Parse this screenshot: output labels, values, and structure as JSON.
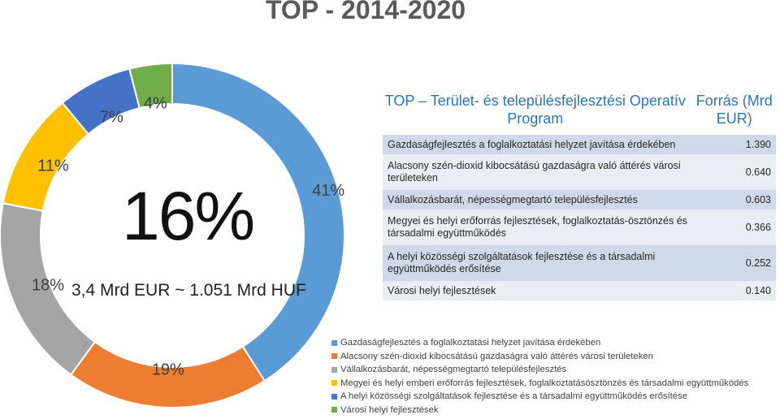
{
  "page_title": "TOP - 2014-2020",
  "center": {
    "percent": "16%",
    "total": "3,4 Mrd EUR ~ 1.051 Mrd HUF"
  },
  "table": {
    "header_program": "TOP – Terület- és településfejlesztési Operatív Program",
    "header_source": "Forrás (Mrd EUR)",
    "rows": [
      {
        "label": "Gazdaságfejlesztés a foglalkoztatási helyzet javítása érdekében",
        "value": "1.390"
      },
      {
        "label": "Alacsony szén-dioxid kibocsátású gazdaságra való áttérés városi területeken",
        "value": "0.640"
      },
      {
        "label": "Vállalkozásbarát, népességmegtartó településfejlesztés",
        "value": "0.603"
      },
      {
        "label": "Megyei és helyi erőforrás fejlesztések, foglalkoztatás-ösztönzés és társadalmi együttműködés",
        "value": "0.366"
      },
      {
        "label": "A helyi közösségi szolgáltatások fejlesztése és a társadalmi együttműködés erősítése",
        "value": "0.252"
      },
      {
        "label": "Városi helyi fejlesztések",
        "value": "0.140"
      }
    ]
  },
  "chart_data": {
    "type": "pie",
    "variant": "donut",
    "categories": [
      "Gazdaságfejlesztés a foglalkoztatási helyzet javítása érdekében",
      "Alacsony szén-dioxid kibocsátású gazdaságra való áttérés városi területeken",
      "Vállalkozásbarát, népességmegtartó településfejlesztés",
      "Megyei és helyi emberi erőforrás fejlesztések, foglalkoztatásösztönzés és társadalmi együttműködés",
      "A helyi közösségi szolgáltatások fejlesztése és a társadalmi együttműködés erősítése",
      "Városi helyi fejlesztések"
    ],
    "values": [
      41,
      19,
      18,
      11,
      7,
      4
    ],
    "labels": [
      "41%",
      "19%",
      "18%",
      "11%",
      "7%",
      "4%"
    ],
    "colors": [
      "#5b9bd5",
      "#ed7d31",
      "#a5a5a5",
      "#ffc000",
      "#4472c4",
      "#70ad47"
    ],
    "legend_position": "bottom-right"
  }
}
